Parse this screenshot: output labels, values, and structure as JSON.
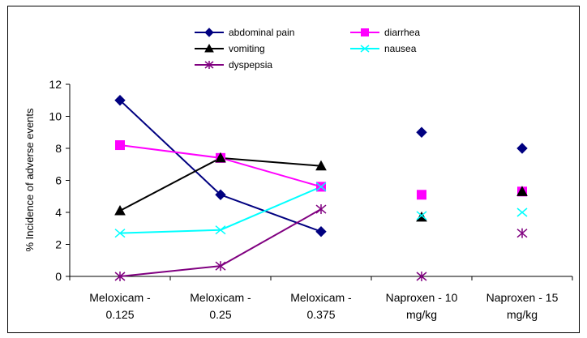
{
  "chart_data": {
    "type": "line",
    "title": "",
    "xlabel": "",
    "ylabel": "% Incidence of adverse events",
    "ylim": [
      0,
      12
    ],
    "yticks": [
      "0",
      "2",
      "4",
      "6",
      "8",
      "10",
      "12"
    ],
    "grid": false,
    "legend_position": "top",
    "categories": [
      [
        "Meloxicam -",
        "0.125"
      ],
      [
        "Meloxicam -",
        "0.25"
      ],
      [
        "Meloxicam -",
        "0.375"
      ],
      [
        "Naproxen - 10",
        "mg/kg"
      ],
      [
        "Naproxen - 15",
        "mg/kg"
      ]
    ],
    "line_categories": 3,
    "series": [
      {
        "name": "abdominal pain",
        "color": "#000080",
        "marker": "diamond",
        "values": [
          11.0,
          5.1,
          2.8,
          9.0,
          8.0
        ]
      },
      {
        "name": "diarrhea",
        "color": "#FF00FF",
        "marker": "square",
        "values": [
          8.2,
          7.4,
          5.6,
          5.1,
          5.3
        ]
      },
      {
        "name": "vomiting",
        "color": "#000000",
        "marker": "triangle",
        "values": [
          4.1,
          7.4,
          6.9,
          3.7,
          5.3
        ]
      },
      {
        "name": "nausea",
        "color": "#00FFFF",
        "marker": "x",
        "values": [
          2.7,
          2.9,
          5.6,
          3.8,
          4.0
        ]
      },
      {
        "name": "dyspepsia",
        "color": "#800080",
        "marker": "star",
        "values": [
          0.0,
          0.65,
          4.2,
          0.0,
          2.7
        ]
      }
    ]
  }
}
